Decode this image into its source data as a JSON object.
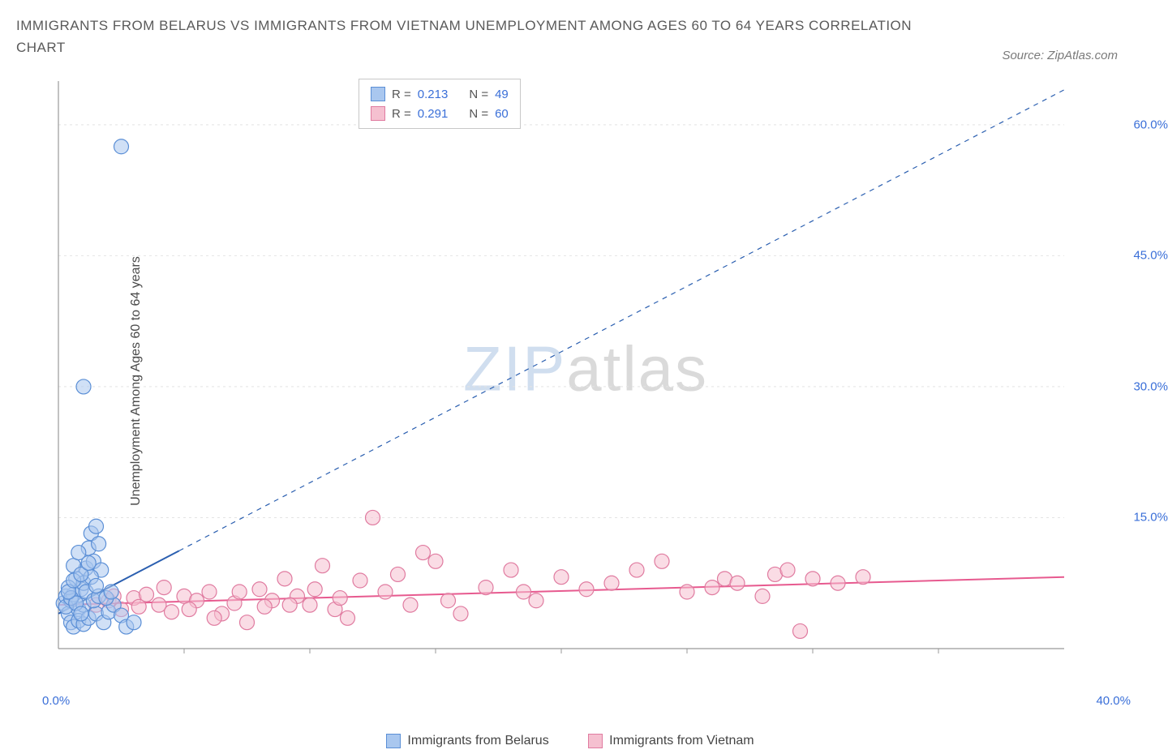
{
  "title": "IMMIGRANTS FROM BELARUS VS IMMIGRANTS FROM VIETNAM UNEMPLOYMENT AMONG AGES 60 TO 64 YEARS CORRELATION CHART",
  "source": "Source: ZipAtlas.com",
  "y_axis_label": "Unemployment Among Ages 60 to 64 years",
  "watermark_zip": "ZIP",
  "watermark_atlas": "atlas",
  "chart": {
    "type": "scatter",
    "background_color": "#ffffff",
    "grid_color": "#e4e4e4",
    "axis_color": "#999999",
    "xlim": [
      0,
      40
    ],
    "ylim": [
      0,
      65
    ],
    "y_ticks": [
      15,
      30,
      45,
      60
    ],
    "y_tick_labels": [
      "15.0%",
      "30.0%",
      "45.0%",
      "60.0%"
    ],
    "x_tick_left": "0.0%",
    "x_tick_right": "40.0%",
    "x_minor_ticks": [
      5,
      10,
      15,
      20,
      25,
      30,
      35
    ],
    "marker_radius": 9,
    "marker_opacity": 0.55,
    "series": [
      {
        "name": "Immigrants from Belarus",
        "color_fill": "#a9c7ef",
        "color_stroke": "#5b8fd6",
        "r_value": "0.213",
        "n_value": "49",
        "trend": {
          "x1": 0,
          "y1": 4.0,
          "x2": 40,
          "y2": 64,
          "solid_until_x": 4.8,
          "stroke": "#2b5fb0",
          "width": 2
        },
        "points": [
          [
            0.2,
            5.2
          ],
          [
            0.3,
            6.0
          ],
          [
            0.4,
            4.0
          ],
          [
            0.5,
            5.5
          ],
          [
            0.6,
            6.2
          ],
          [
            0.7,
            8.0
          ],
          [
            0.8,
            4.5
          ],
          [
            0.9,
            6.8
          ],
          [
            1.0,
            5.0
          ],
          [
            1.1,
            9.2
          ],
          [
            1.2,
            11.5
          ],
          [
            1.3,
            13.2
          ],
          [
            1.4,
            10.0
          ],
          [
            1.5,
            14.0
          ],
          [
            1.6,
            12.0
          ],
          [
            1.7,
            9.0
          ],
          [
            0.5,
            3.0
          ],
          [
            0.6,
            2.5
          ],
          [
            0.8,
            3.2
          ],
          [
            1.0,
            2.8
          ],
          [
            1.2,
            3.5
          ],
          [
            1.5,
            4.0
          ],
          [
            1.8,
            3.0
          ],
          [
            2.0,
            4.2
          ],
          [
            2.2,
            5.0
          ],
          [
            2.5,
            3.8
          ],
          [
            2.7,
            2.5
          ],
          [
            3.0,
            3.0
          ],
          [
            1.0,
            7.5
          ],
          [
            1.3,
            8.2
          ],
          [
            0.4,
            7.0
          ],
          [
            0.6,
            9.5
          ],
          [
            0.8,
            11.0
          ],
          [
            0.3,
            4.8
          ],
          [
            0.5,
            5.8
          ],
          [
            0.7,
            5.2
          ],
          [
            0.9,
            4.0
          ],
          [
            1.1,
            6.5
          ],
          [
            1.4,
            5.5
          ],
          [
            1.6,
            6.0
          ],
          [
            1.9,
            5.8
          ],
          [
            2.1,
            6.5
          ],
          [
            1.0,
            30.0
          ],
          [
            2.5,
            57.5
          ],
          [
            0.4,
            6.5
          ],
          [
            0.6,
            7.8
          ],
          [
            0.9,
            8.5
          ],
          [
            1.2,
            9.8
          ],
          [
            1.5,
            7.2
          ]
        ]
      },
      {
        "name": "Immigrants from Vietnam",
        "color_fill": "#f5c0d0",
        "color_stroke": "#e07ba0",
        "r_value": "0.291",
        "n_value": "60",
        "trend": {
          "x1": 0,
          "y1": 5.0,
          "x2": 40,
          "y2": 8.2,
          "solid_until_x": 40,
          "stroke": "#e75a8f",
          "width": 2
        },
        "points": [
          [
            1.5,
            5.0
          ],
          [
            2.0,
            5.5
          ],
          [
            2.5,
            4.5
          ],
          [
            3.0,
            5.8
          ],
          [
            3.5,
            6.2
          ],
          [
            4.0,
            5.0
          ],
          [
            4.5,
            4.2
          ],
          [
            5.0,
            6.0
          ],
          [
            5.5,
            5.5
          ],
          [
            6.0,
            6.5
          ],
          [
            6.5,
            4.0
          ],
          [
            7.0,
            5.2
          ],
          [
            7.5,
            3.0
          ],
          [
            8.0,
            6.8
          ],
          [
            8.5,
            5.5
          ],
          [
            9.0,
            8.0
          ],
          [
            9.5,
            6.0
          ],
          [
            10.0,
            5.0
          ],
          [
            10.5,
            9.5
          ],
          [
            11.0,
            4.5
          ],
          [
            11.5,
            3.5
          ],
          [
            12.0,
            7.8
          ],
          [
            12.5,
            15.0
          ],
          [
            13.0,
            6.5
          ],
          [
            13.5,
            8.5
          ],
          [
            14.0,
            5.0
          ],
          [
            14.5,
            11.0
          ],
          [
            15.0,
            10.0
          ],
          [
            15.5,
            5.5
          ],
          [
            16.0,
            4.0
          ],
          [
            17.0,
            7.0
          ],
          [
            18.0,
            9.0
          ],
          [
            18.5,
            6.5
          ],
          [
            19.0,
            5.5
          ],
          [
            20.0,
            8.2
          ],
          [
            21.0,
            6.8
          ],
          [
            22.0,
            7.5
          ],
          [
            23.0,
            9.0
          ],
          [
            24.0,
            10.0
          ],
          [
            25.0,
            6.5
          ],
          [
            26.0,
            7.0
          ],
          [
            26.5,
            8.0
          ],
          [
            27.0,
            7.5
          ],
          [
            28.0,
            6.0
          ],
          [
            28.5,
            8.5
          ],
          [
            29.0,
            9.0
          ],
          [
            29.5,
            2.0
          ],
          [
            30.0,
            8.0
          ],
          [
            31.0,
            7.5
          ],
          [
            32.0,
            8.2
          ],
          [
            2.2,
            6.0
          ],
          [
            3.2,
            4.8
          ],
          [
            4.2,
            7.0
          ],
          [
            5.2,
            4.5
          ],
          [
            6.2,
            3.5
          ],
          [
            7.2,
            6.5
          ],
          [
            8.2,
            4.8
          ],
          [
            9.2,
            5.0
          ],
          [
            10.2,
            6.8
          ],
          [
            11.2,
            5.8
          ]
        ]
      }
    ]
  },
  "stats_legend": {
    "r_label": "R =",
    "n_label": "N ="
  },
  "bottom_legend": {
    "series1": "Immigrants from Belarus",
    "series2": "Immigrants from Vietnam"
  }
}
